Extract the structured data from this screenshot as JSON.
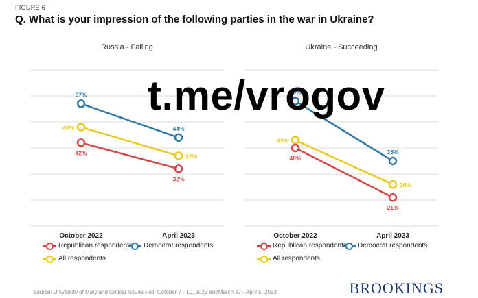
{
  "figure_label": "FIGURE 6",
  "question": "Q. What is your impression of the following parties in the war in Ukraine?",
  "watermark": "t.me/vrogov",
  "source": "Source: University of Maryland Critical Issues Poll, October 7 - 10, 2022 andMarch 27 - April 5, 2023",
  "brand": "BROOKINGS",
  "colors": {
    "republican": "#d64545",
    "democrat": "#2f7aa3",
    "all": "#e8c91e",
    "grid": "#dddddd"
  },
  "legend": {
    "republican": "Republican respondents",
    "democrat": "Democrat respondents",
    "all": "All respondents"
  },
  "chart_data": [
    {
      "type": "line",
      "title": "Russia - Failing",
      "categories": [
        "October 2022",
        "April 2023"
      ],
      "series": [
        {
          "name": "Democrat respondents",
          "key": "democrat",
          "values": [
            57,
            44
          ],
          "labels": [
            "57%",
            "44%"
          ]
        },
        {
          "name": "All respondents",
          "key": "all",
          "values": [
            48,
            37
          ],
          "labels": [
            "48%",
            "37%"
          ]
        },
        {
          "name": "Republican respondents",
          "key": "republican",
          "values": [
            42,
            32
          ],
          "labels": [
            "42%",
            "32%"
          ]
        }
      ],
      "ylim": [
        10,
        70
      ],
      "grid": true
    },
    {
      "type": "line",
      "title": "Ukraine - Succeeding",
      "categories": [
        "October 2022",
        "April 2023"
      ],
      "series": [
        {
          "name": "Democrat respondents",
          "key": "democrat",
          "values": [
            58,
            35
          ],
          "labels": [
            "58%",
            "35%"
          ]
        },
        {
          "name": "All respondents",
          "key": "all",
          "values": [
            43,
            26
          ],
          "labels": [
            "43%",
            "26%"
          ]
        },
        {
          "name": "Republican respondents",
          "key": "republican",
          "values": [
            40,
            21
          ],
          "labels": [
            "40%",
            "21%"
          ]
        }
      ],
      "ylim": [
        10,
        70
      ],
      "grid": true
    }
  ]
}
